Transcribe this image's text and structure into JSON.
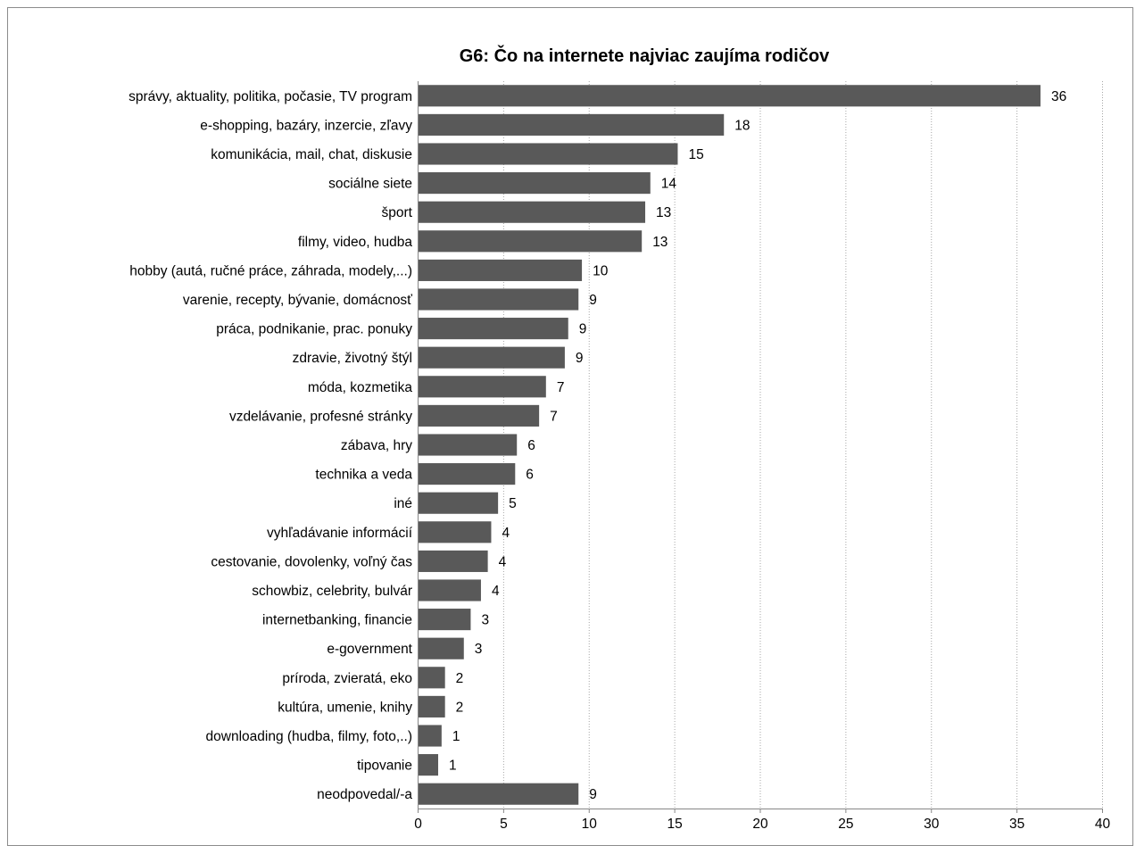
{
  "chart_data": {
    "type": "bar",
    "orientation": "horizontal",
    "title": "G6: Čo na internete najviac zaujíma rodičov",
    "xlabel": "",
    "ylabel": "",
    "xlim": [
      0,
      40
    ],
    "xticks": [
      "0",
      "5",
      "10",
      "15",
      "20",
      "25",
      "30",
      "35",
      "40"
    ],
    "grid": true,
    "bar_color": "#595959",
    "categories": [
      "správy, aktuality, politika, počasie, TV program",
      "e-shopping, bazáry, inzercie, zľavy",
      "komunikácia, mail, chat, diskusie",
      "sociálne siete",
      "šport",
      "filmy, video, hudba",
      "hobby (autá, ručné práce, záhrada, modely,...)",
      "varenie, recepty, bývanie, domácnosť",
      "práca, podnikanie, prac. ponuky",
      "zdravie, životný štýl",
      "móda, kozmetika",
      "vzdelávanie, profesné stránky",
      "zábava, hry",
      "technika a veda",
      "iné",
      "vyhľadávanie informácií",
      "cestovanie, dovolenky, voľný čas",
      "schowbiz, celebrity, bulvár",
      "internetbanking, financie",
      "e-government",
      "príroda, zvieratá, eko",
      "kultúra, umenie, knihy",
      "downloading (hudba, filmy, foto,..)",
      "tipovanie",
      "neodpovedal/-a"
    ],
    "values": [
      36.4,
      17.9,
      15.2,
      13.6,
      13.3,
      13.1,
      9.6,
      9.4,
      8.8,
      8.6,
      7.5,
      7.1,
      5.8,
      5.7,
      4.7,
      4.3,
      4.1,
      3.7,
      3.1,
      2.7,
      1.6,
      1.6,
      1.4,
      1.2,
      9.4
    ],
    "value_labels": [
      "36",
      "18",
      "15",
      "14",
      "13",
      "13",
      "10",
      "9",
      "9",
      "9",
      "7",
      "7",
      "6",
      "6",
      "5",
      "4",
      "4",
      "4",
      "3",
      "3",
      "2",
      "2",
      "1",
      "1",
      "9"
    ]
  }
}
